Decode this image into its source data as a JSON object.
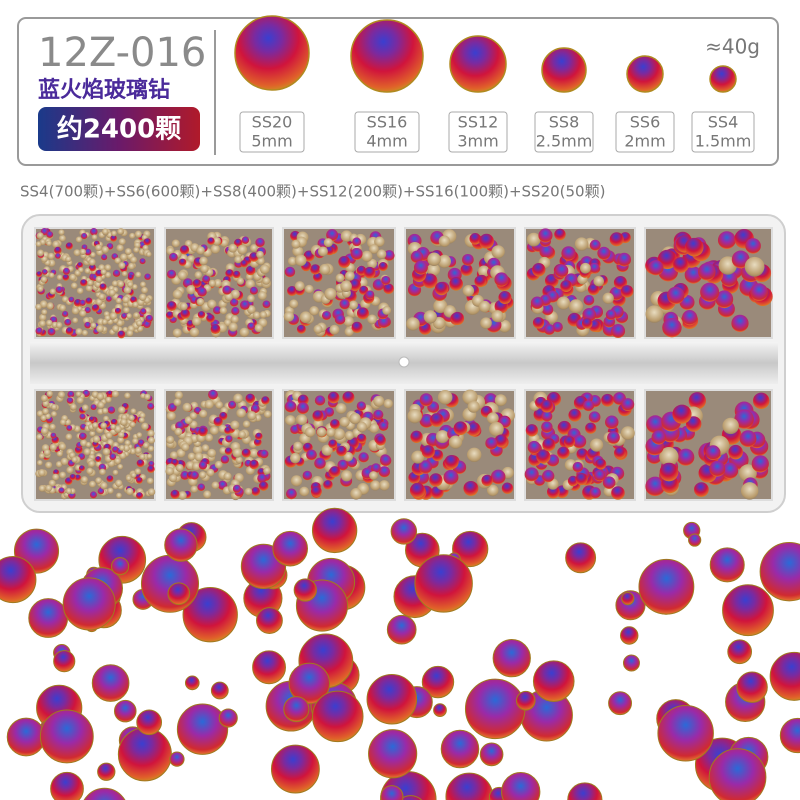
{
  "header": {
    "code": "12Z-016",
    "name": "蓝火焰玻璃钻",
    "count": "约2400颗",
    "weight": "≈40g"
  },
  "sizes": [
    {
      "grade": "SS20",
      "mm": "5mm"
    },
    {
      "grade": "SS16",
      "mm": "4mm"
    },
    {
      "grade": "SS12",
      "mm": "3mm"
    },
    {
      "grade": "SS8",
      "mm": "2.5mm"
    },
    {
      "grade": "SS6",
      "mm": "2mm"
    },
    {
      "grade": "SS4",
      "mm": "1.5mm"
    }
  ],
  "composition": "SS4(700颗)+SS6(600颗)+SS8(400颗)+SS12(200颗)+SS16(100颗)+SS20(50颗)"
}
